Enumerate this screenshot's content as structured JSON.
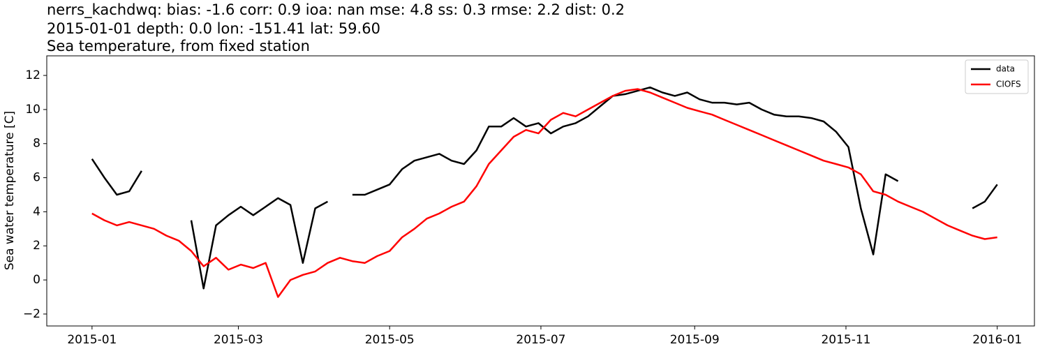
{
  "chart_data": {
    "type": "line",
    "title": "nerrs_kachdwq: bias: -1.6  corr: 0.9  ioa: nan  mse: 4.8  ss: 0.3  rmse: 2.2  dist: 0.2",
    "subtitle": "2015-01-01 depth: 0.0 lon: -151.41 lat: 59.60",
    "subtitle2": "Sea temperature, from fixed station",
    "ylabel": "Sea water temperature [C]",
    "x": [
      0,
      5,
      10,
      15,
      20,
      25,
      30,
      35,
      40,
      45,
      50,
      55,
      60,
      65,
      70,
      75,
      80,
      85,
      90,
      95,
      100,
      105,
      110,
      115,
      120,
      125,
      130,
      135,
      140,
      145,
      150,
      155,
      160,
      165,
      170,
      175,
      180,
      185,
      190,
      195,
      200,
      205,
      210,
      215,
      220,
      225,
      230,
      235,
      240,
      245,
      250,
      255,
      260,
      265,
      270,
      275,
      280,
      285,
      290,
      295,
      300,
      305,
      310,
      315,
      320,
      325,
      330,
      335,
      340,
      345,
      350,
      355,
      360,
      365
    ],
    "series": [
      {
        "name": "data",
        "color": "#000000",
        "values": [
          7.1,
          6.0,
          5.0,
          5.2,
          6.4,
          null,
          null,
          null,
          3.5,
          -0.5,
          3.2,
          3.8,
          4.3,
          3.8,
          4.3,
          4.8,
          4.4,
          1.0,
          4.2,
          4.6,
          null,
          5.0,
          5.0,
          5.3,
          5.6,
          6.5,
          7.0,
          7.2,
          7.4,
          7.0,
          6.8,
          7.6,
          9.0,
          9.0,
          9.5,
          9.0,
          9.2,
          8.6,
          9.0,
          9.2,
          9.6,
          10.2,
          10.8,
          10.9,
          11.1,
          11.3,
          11.0,
          10.8,
          11.0,
          10.6,
          10.4,
          10.4,
          10.3,
          10.4,
          10.0,
          9.7,
          9.6,
          9.6,
          9.5,
          9.3,
          8.7,
          7.8,
          4.2,
          1.5,
          6.2,
          5.8,
          null,
          null,
          null,
          null,
          null,
          4.2,
          4.6,
          5.6
        ]
      },
      {
        "name": "CIOFS",
        "color": "#ff0000",
        "values": [
          3.9,
          3.5,
          3.2,
          3.4,
          3.2,
          3.0,
          2.6,
          2.3,
          1.7,
          0.8,
          1.3,
          0.6,
          0.9,
          0.7,
          1.0,
          -1.0,
          0.0,
          0.3,
          0.5,
          1.0,
          1.3,
          1.1,
          1.0,
          1.4,
          1.7,
          2.5,
          3.0,
          3.6,
          3.9,
          4.3,
          4.6,
          5.5,
          6.8,
          7.6,
          8.4,
          8.8,
          8.6,
          9.4,
          9.8,
          9.6,
          10.0,
          10.4,
          10.8,
          11.1,
          11.2,
          11.0,
          10.7,
          10.4,
          10.1,
          9.9,
          9.7,
          9.4,
          9.1,
          8.8,
          8.5,
          8.2,
          7.9,
          7.6,
          7.3,
          7.0,
          6.8,
          6.6,
          6.2,
          5.2,
          5.0,
          4.6,
          4.3,
          4.0,
          3.6,
          3.2,
          2.9,
          2.6,
          2.4,
          2.5
        ]
      }
    ],
    "xlim": [
      -18.25,
      380
    ],
    "xticks": [
      {
        "value": 0,
        "label": "2015-01"
      },
      {
        "value": 59,
        "label": "2015-03"
      },
      {
        "value": 120,
        "label": "2015-05"
      },
      {
        "value": 181,
        "label": "2015-07"
      },
      {
        "value": 243,
        "label": "2015-09"
      },
      {
        "value": 304,
        "label": "2015-11"
      },
      {
        "value": 365,
        "label": "2016-01"
      }
    ],
    "ylim": [
      -2.7,
      13.15
    ],
    "yticks": [
      {
        "value": -2,
        "label": "−2"
      },
      0,
      2,
      4,
      6,
      8,
      10,
      12
    ],
    "legend": "upper right"
  }
}
